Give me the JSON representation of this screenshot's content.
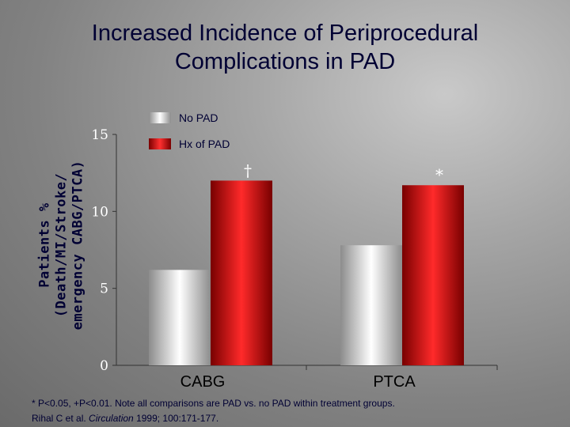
{
  "title_lines": [
    "Increased Incidence of Periprocedural",
    "Complications in PAD"
  ],
  "ylabel_lines": [
    "Patients %",
    "(Death/MI/Stroke/",
    "emergency CABG/PTCA)"
  ],
  "legend": [
    {
      "label": "No PAD",
      "color": "#d9d9d9"
    },
    {
      "label": "Hx of PAD",
      "color": "#e01010"
    }
  ],
  "footnote": {
    "line1": "* P<0.05, +P<0.01. Note all comparisons are PAD vs. no PAD within treatment groups.",
    "line2_prefix": "Rihal C et al. ",
    "line2_journal": "Circulation",
    "line2_suffix": " 1999; 100:171-177."
  },
  "chart_data": {
    "type": "bar",
    "categories": [
      "CABG",
      "PTCA"
    ],
    "series": [
      {
        "name": "No PAD",
        "values": [
          6.2,
          7.8
        ]
      },
      {
        "name": "Hx of PAD",
        "values": [
          12.0,
          11.7
        ]
      }
    ],
    "annotations": [
      "†",
      "*"
    ],
    "yticks": [
      "0",
      "5",
      "10",
      "15"
    ],
    "ylim": [
      0,
      15
    ],
    "grid": false,
    "legend_position": "top-left"
  }
}
